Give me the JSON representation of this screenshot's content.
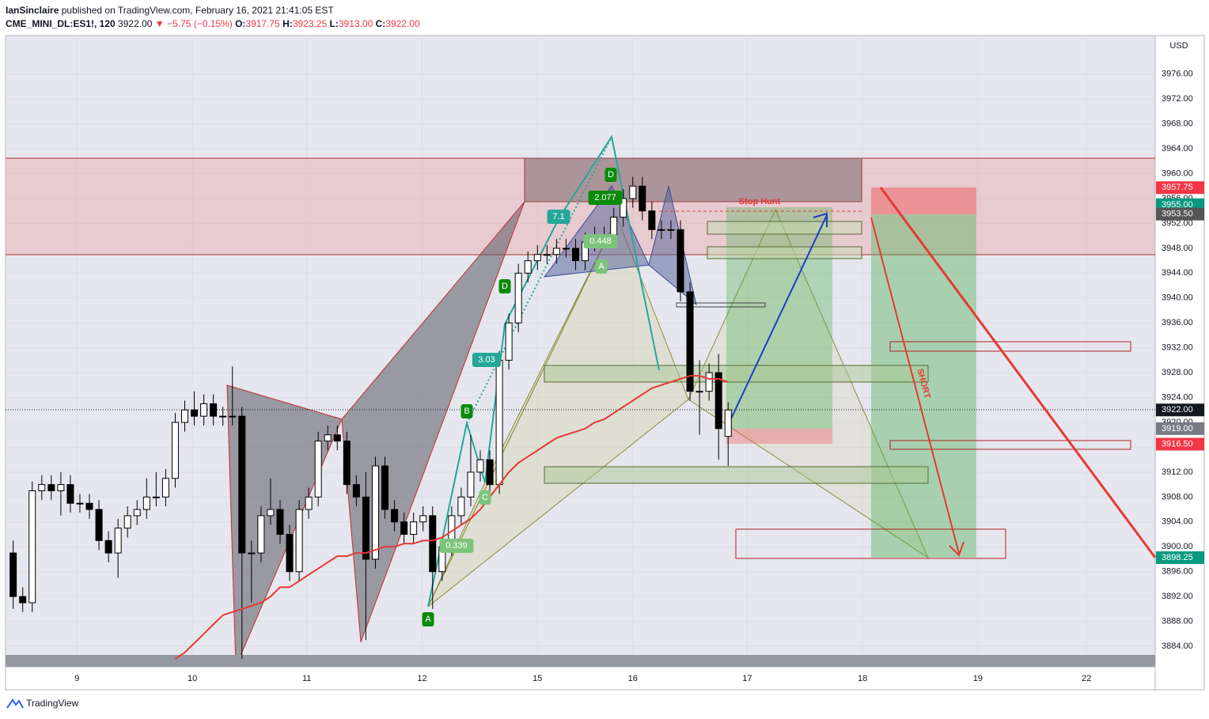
{
  "header": {
    "author": "IanSinclaire",
    "published": "published on TradingView.com, February 16, 2021 21:41:05 EST",
    "symbol": "CME_MINI_DL:ES1!, 120",
    "last": "3922.00",
    "change": "▼ −5.75 (−0.15%)",
    "o_label": "O:",
    "o": "3917.75",
    "h_label": "H:",
    "h": "3923.25",
    "l_label": "L:",
    "l": "3913.00",
    "c_label": "C:",
    "c": "3922.00"
  },
  "footer": {
    "brand": "TradingView"
  },
  "chart_data": {
    "type": "candlestick",
    "currency": "USD",
    "up_color": "#ffffff",
    "down_color": "#000000",
    "open": [
      3899,
      3892,
      3891,
      3909,
      3910,
      3909,
      3910,
      3907,
      3907,
      3906,
      3901,
      3899,
      3903,
      3905,
      3906,
      3908,
      3908,
      3911,
      3920,
      3922,
      3921,
      3923,
      3921,
      3921,
      3921,
      3899,
      3899,
      3905,
      3906,
      3902,
      3896,
      3906,
      3908,
      3917,
      3918,
      3917,
      3910,
      3908,
      3898,
      3913,
      3906,
      3904,
      3902,
      3904,
      3905,
      3896,
      3900,
      3905,
      3908,
      3912,
      3914,
      3910,
      3930,
      3936,
      3944,
      3946,
      3947,
      3947,
      3948,
      3948,
      3946,
      3949,
      3950,
      3950,
      3953,
      3956,
      3958,
      3954,
      3951,
      3951,
      3951,
      3941,
      3925,
      3925,
      3928,
      3917.75
    ],
    "high": [
      3901,
      3893.5,
      3910.5,
      3911.5,
      3911.5,
      3912,
      3911.5,
      3908.5,
      3908.5,
      3907.5,
      3902.5,
      3904.5,
      3906.5,
      3907.5,
      3911,
      3912,
      3912.5,
      3921.5,
      3923.5,
      3925,
      3924.5,
      3924.5,
      3922.5,
      3929,
      3922.5,
      3901,
      3906.5,
      3911,
      3907.5,
      3903.5,
      3907.5,
      3909.5,
      3918.5,
      3919.5,
      3919.5,
      3918.5,
      3911.5,
      3912,
      3914.5,
      3914.5,
      3907.5,
      3905.5,
      3905.5,
      3906.5,
      3906.5,
      3901.5,
      3906.5,
      3909.5,
      3918,
      3915.5,
      3915.5,
      3931.5,
      3937.5,
      3945.5,
      3947.5,
      3948.5,
      3948.5,
      3949.5,
      3949.5,
      3949.5,
      3950.5,
      3951.5,
      3951.5,
      3954.5,
      3957.5,
      3959.5,
      3959.5,
      3955.5,
      3952.5,
      3952.5,
      3952.5,
      3942.5,
      3930,
      3929.5,
      3931,
      3923.25
    ],
    "low": [
      3890,
      3889.5,
      3889.5,
      3907.5,
      3907.5,
      3905,
      3905.5,
      3905.5,
      3904.5,
      3899.5,
      3897.5,
      3895,
      3901.5,
      3903.5,
      3904.5,
      3906.5,
      3906.5,
      3909.5,
      3918.5,
      3919.5,
      3919.5,
      3919.5,
      3919.5,
      3919.5,
      3882,
      3891,
      3897.5,
      3903.5,
      3900.5,
      3894.5,
      3894.5,
      3904.5,
      3906.5,
      3915.5,
      3915.5,
      3908.5,
      3906.5,
      3885,
      3896.5,
      3904.5,
      3902.5,
      3900.5,
      3900.5,
      3902.5,
      3890,
      3894.5,
      3898.5,
      3903.5,
      3906.5,
      3910.5,
      3908.5,
      3908.5,
      3928.5,
      3934.5,
      3942.5,
      3944.5,
      3945.5,
      3945.5,
      3946.5,
      3944.5,
      3944.5,
      3947.5,
      3948.5,
      3948.5,
      3951.5,
      3954.5,
      3952.5,
      3949.5,
      3949.5,
      3949.5,
      3939.5,
      3923.5,
      3918,
      3923.5,
      3914,
      3913
    ],
    "close": [
      3892,
      3891,
      3909,
      3910,
      3909,
      3910,
      3907,
      3907,
      3906,
      3901,
      3899,
      3903,
      3905,
      3906,
      3908,
      3908,
      3911,
      3920,
      3922,
      3921,
      3923,
      3921,
      3921,
      3921,
      3899,
      3899,
      3905,
      3906,
      3902,
      3896,
      3906,
      3908,
      3917,
      3918,
      3917,
      3910,
      3908,
      3898,
      3913,
      3906,
      3904,
      3902,
      3904,
      3905,
      3896,
      3900,
      3905,
      3908,
      3912,
      3914,
      3910,
      3930,
      3936,
      3944,
      3946,
      3947,
      3947,
      3948,
      3948,
      3946,
      3949,
      3950,
      3950,
      3953,
      3956,
      3958,
      3954,
      3951,
      3951,
      3951,
      3941,
      3925,
      3925,
      3928,
      3919,
      3922
    ],
    "ma": {
      "color": "#e53935",
      "values": [
        null,
        null,
        null,
        null,
        null,
        null,
        null,
        null,
        null,
        null,
        null,
        null,
        null,
        null,
        null,
        null,
        null,
        3882,
        3883,
        3884.5,
        3886,
        3887.5,
        3889,
        3889.5,
        3890,
        3890.5,
        3891,
        3892,
        3893.5,
        3893.5,
        3894.5,
        3895.5,
        3896.5,
        3897.5,
        3898.5,
        3898.5,
        3899,
        3899,
        3899.5,
        3900,
        3900,
        3900.5,
        3900.5,
        3901,
        3901,
        3901.5,
        3902.5,
        3903.5,
        3904.5,
        3906,
        3908,
        3910,
        3912,
        3913.5,
        3914.5,
        3915.5,
        3916.5,
        3917.5,
        3918,
        3918.5,
        3919,
        3920,
        3920.5,
        3921.5,
        3922.5,
        3923.5,
        3924.5,
        3925.5,
        3926,
        3926.5,
        3927,
        3927.5,
        3927.5,
        3927,
        3927,
        3926.5
      ]
    },
    "ylim": [
      3880.7,
      3982.2
    ],
    "yticks": [
      {
        "value": 3884,
        "label": "3884.00"
      },
      {
        "value": 3888,
        "label": "3888.00"
      },
      {
        "value": 3892,
        "label": "3892.00"
      },
      {
        "value": 3896,
        "label": "3896.00"
      },
      {
        "value": 3900,
        "label": "3900.00"
      },
      {
        "value": 3904,
        "label": "3904.00"
      },
      {
        "value": 3908,
        "label": "3908.00"
      },
      {
        "value": 3912,
        "label": "3912.00"
      },
      {
        "value": 3916,
        "label": "3916.00"
      },
      {
        "value": 3920,
        "label": "3920.00"
      },
      {
        "value": 3924,
        "label": "3924.00"
      },
      {
        "value": 3928,
        "label": "3928.00"
      },
      {
        "value": 3932,
        "label": "3932.00"
      },
      {
        "value": 3936,
        "label": "3936.00"
      },
      {
        "value": 3940,
        "label": "3940.00"
      },
      {
        "value": 3944,
        "label": "3944.00"
      },
      {
        "value": 3948,
        "label": "3948.00"
      },
      {
        "value": 3952,
        "label": "3952.00"
      },
      {
        "value": 3956,
        "label": "3956.00"
      },
      {
        "value": 3960,
        "label": "3960.00"
      },
      {
        "value": 3964,
        "label": "3964.00"
      },
      {
        "value": 3968,
        "label": "3968.00"
      },
      {
        "value": 3972,
        "label": "3972.00"
      },
      {
        "value": 3976,
        "label": "3976.00"
      }
    ],
    "xlim": [
      -0.8,
      119.8
    ],
    "xticks": [
      {
        "value": 6.7,
        "label": "9"
      },
      {
        "value": 18.8,
        "label": "10"
      },
      {
        "value": 30.8,
        "label": "11"
      },
      {
        "value": 42.9,
        "label": "12"
      },
      {
        "value": 55.0,
        "label": "15"
      },
      {
        "value": 65.0,
        "label": "16"
      },
      {
        "value": 77.0,
        "label": "17"
      },
      {
        "value": 89.1,
        "label": "18"
      },
      {
        "value": 101.2,
        "label": "19"
      },
      {
        "value": 112.6,
        "label": "22"
      }
    ],
    "price_labels": [
      {
        "value": 3957.75,
        "label": "3957.75",
        "color": "#f23645"
      },
      {
        "value": 3955.0,
        "label": "3955.00",
        "color": "#089981"
      },
      {
        "value": 3953.5,
        "label": "3953.50",
        "color": "#555555"
      },
      {
        "value": 3922.0,
        "label": "3922.00",
        "color": "#131722"
      },
      {
        "value": 3919.0,
        "label": "3919.00",
        "color": "#787b86"
      },
      {
        "value": 3916.5,
        "label": "3916.50",
        "color": "#f23645"
      },
      {
        "value": 3898.25,
        "label": "3898.25",
        "color": "#089981"
      }
    ],
    "pattern_labels": [
      "D",
      "7.1",
      "2.077",
      "0.448",
      "A",
      "D",
      "3.03",
      "B",
      "C",
      "0.339",
      "A"
    ],
    "annotations": [
      "Stop Hunt",
      "SHORT"
    ]
  }
}
